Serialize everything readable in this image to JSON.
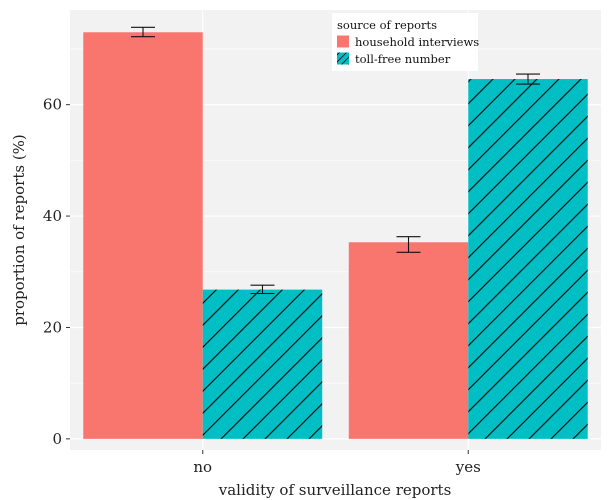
{
  "chart_data": {
    "type": "bar",
    "title": "",
    "xlabel": "validity of surveillance reports",
    "ylabel": "proportion of reports (%)",
    "categories": [
      "no",
      "yes"
    ],
    "ylim": [
      -2,
      77
    ],
    "yticks": [
      0,
      20,
      40,
      60
    ],
    "ytick_labels": [
      "0",
      "20",
      "40",
      "60"
    ],
    "grid": true,
    "legend": {
      "title": "source of reports",
      "position": "top-right"
    },
    "series": [
      {
        "name": "household interviews",
        "color": "#F8766D",
        "pattern": "none",
        "values": [
          73.0,
          35.3
        ],
        "err_low": [
          72.2,
          33.5
        ],
        "err_high": [
          73.9,
          36.3
        ]
      },
      {
        "name": "toll-free number",
        "color": "#00BFC4",
        "pattern": "diagonal-hatch",
        "values": [
          26.8,
          64.6
        ],
        "err_low": [
          26.1,
          63.7
        ],
        "err_high": [
          27.6,
          65.5
        ]
      }
    ]
  }
}
